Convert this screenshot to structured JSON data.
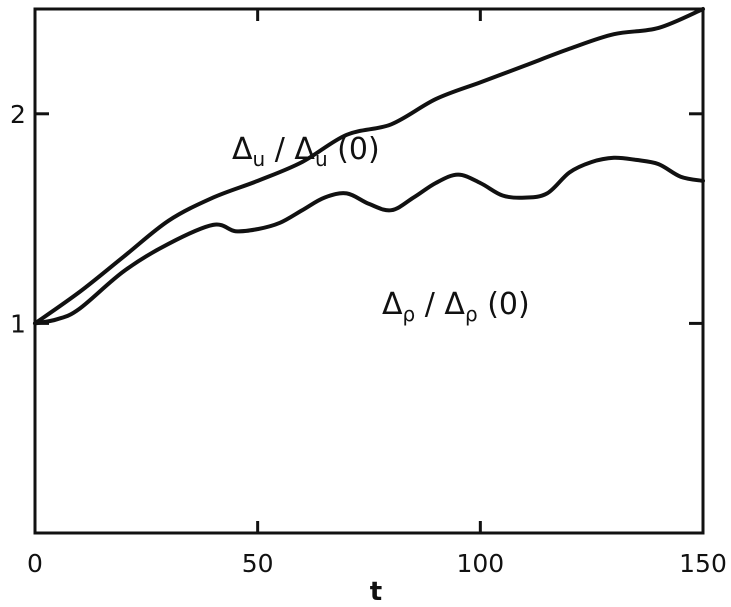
{
  "chart_data": {
    "type": "line",
    "title": "",
    "xlabel": "t",
    "ylabel": "",
    "xlim": [
      0,
      150
    ],
    "ylim": [
      0,
      2.5
    ],
    "x_ticks": [
      0,
      50,
      100,
      150
    ],
    "y_ticks": [
      1,
      2
    ],
    "grid": false,
    "series": [
      {
        "name": "Δu / Δu (0)",
        "name_parts": {
          "sym1": "Δ",
          "sub1": "u",
          "sep": " / ",
          "sym2": "Δ",
          "sub2": "u",
          "tail": " (0)"
        },
        "x": [
          0,
          10,
          20,
          30,
          40,
          50,
          60,
          70,
          80,
          90,
          100,
          110,
          120,
          130,
          140,
          150
        ],
        "y": [
          1.0,
          1.15,
          1.32,
          1.49,
          1.6,
          1.68,
          1.77,
          1.9,
          1.95,
          2.07,
          2.15,
          2.23,
          2.31,
          2.38,
          2.41,
          2.5
        ]
      },
      {
        "name": "Δρ / Δρ (0)",
        "name_parts": {
          "sym1": "Δ",
          "sub1": "ρ",
          "sep": " / ",
          "sym2": "Δ",
          "sub2": "ρ",
          "tail": " (0)"
        },
        "x": [
          0,
          5,
          10,
          20,
          30,
          40,
          45,
          50,
          55,
          60,
          65,
          70,
          75,
          80,
          85,
          90,
          95,
          100,
          105,
          110,
          115,
          120,
          125,
          130,
          135,
          140,
          145,
          150
        ],
        "y": [
          1.0,
          1.02,
          1.07,
          1.25,
          1.38,
          1.47,
          1.44,
          1.45,
          1.48,
          1.54,
          1.6,
          1.62,
          1.57,
          1.54,
          1.6,
          1.67,
          1.71,
          1.67,
          1.61,
          1.6,
          1.62,
          1.72,
          1.77,
          1.79,
          1.78,
          1.76,
          1.7,
          1.68
        ]
      }
    ]
  }
}
